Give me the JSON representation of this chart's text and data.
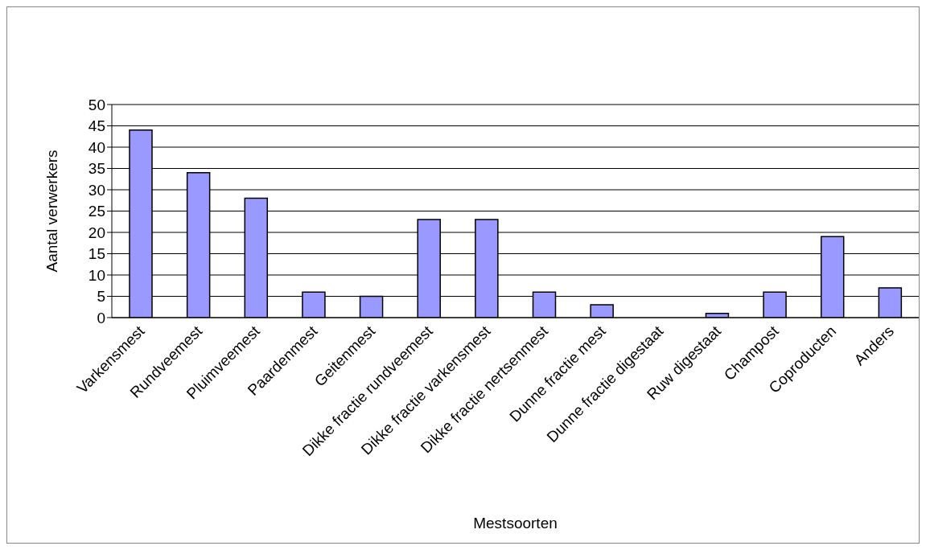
{
  "chart_data": {
    "type": "bar",
    "xlabel": "Mestsoorten",
    "ylabel": "Aantal verwerkers",
    "categories": [
      "Varkensmest",
      "Rundveemest",
      "Pluimveemest",
      "Paardenmest",
      "Geitenmest",
      "Dikke fractie rundveemest",
      "Dikke fractie varkensmest",
      "Dikke fractie nertsenmest",
      "Dunne fractie mest",
      "Dunne fractie digestaat",
      "Ruw digestaat",
      "Champost",
      "Coproducten",
      "Anders"
    ],
    "values": [
      44,
      34,
      28,
      6,
      5,
      23,
      23,
      6,
      3,
      0,
      1,
      6,
      19,
      7
    ],
    "color": "#9999ff",
    "ylim": [
      0,
      50
    ],
    "yticks": [
      0,
      5,
      10,
      15,
      20,
      25,
      30,
      35,
      40,
      45,
      50
    ],
    "grid": "y",
    "legend": false
  }
}
